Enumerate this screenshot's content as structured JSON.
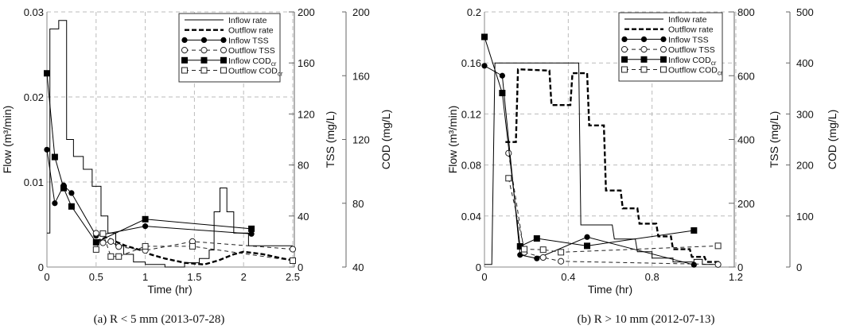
{
  "chart_data": [
    {
      "type": "line",
      "caption": "(a)  R < 5 mm  (2013-07-28)",
      "xlabel": "Time (hr)",
      "ylabel": "Flow (m³/min)",
      "y2label": "TSS (mg/L)",
      "y3label": "COD (mg/L)",
      "xlim": [
        0,
        2.5
      ],
      "xticks": [
        "0",
        "0.5",
        "1",
        "1.5",
        "2",
        "2.5"
      ],
      "ylim": [
        0,
        0.03
      ],
      "yticks": [
        "0",
        "0.01",
        "0.02",
        "0.03"
      ],
      "y2lim": [
        0,
        200
      ],
      "y2ticks": [
        "0",
        "40",
        "80",
        "120",
        "160",
        "200"
      ],
      "y3lim": [
        40,
        200
      ],
      "y3ticks": [
        "40",
        "80",
        "120",
        "160",
        "200"
      ],
      "legend_position": "top-right",
      "series": [
        {
          "name": "Inflow rate",
          "axis": "flow",
          "style": "solid-step",
          "x": [
            0,
            0.03,
            0.03,
            0.12,
            0.12,
            0.2,
            0.2,
            0.27,
            0.27,
            0.37,
            0.37,
            0.46,
            0.46,
            0.55,
            0.55,
            0.62,
            0.62,
            0.7,
            0.7,
            0.78,
            0.78,
            0.88,
            0.88,
            1.0,
            1.0,
            1.2,
            1.2,
            1.4,
            1.4,
            1.55,
            1.55,
            1.65,
            1.65,
            1.7,
            1.7,
            1.76,
            1.76,
            1.83,
            1.83,
            1.9,
            1.9,
            2.05,
            2.05,
            2.5
          ],
          "y": [
            0.004,
            0.004,
            0.028,
            0.028,
            0.029,
            0.029,
            0.015,
            0.015,
            0.013,
            0.013,
            0.0115,
            0.0115,
            0.0095,
            0.0095,
            0.006,
            0.006,
            0.004,
            0.004,
            0.0025,
            0.0025,
            0.0015,
            0.0015,
            0.0006,
            0.0006,
            0.0003,
            0.0003,
            0.0,
            0.0,
            0.0005,
            0.0005,
            0.001,
            0.001,
            0.002,
            0.002,
            0.0065,
            0.0065,
            0.0093,
            0.0093,
            0.0065,
            0.0065,
            0.004,
            0.004,
            0.0025,
            0.0025
          ]
        },
        {
          "name": "Outflow rate",
          "axis": "flow",
          "style": "thick-dash",
          "x": [
            0.5,
            0.6,
            0.7,
            0.8,
            0.95,
            1.05,
            1.2,
            1.4,
            1.6,
            1.75,
            1.9,
            2.0,
            2.2,
            2.4,
            2.5
          ],
          "y": [
            0.003,
            0.0035,
            0.003,
            0.0025,
            0.002,
            0.0015,
            0.001,
            0.0005,
            0.0003,
            0.0008,
            0.0015,
            0.0018,
            0.0015,
            0.001,
            0.0008
          ]
        },
        {
          "name": "Inflow TSS",
          "axis": "tss",
          "style": "filled-circle",
          "x": [
            0,
            0.08,
            0.17,
            0.25,
            0.5,
            1.0,
            2.08
          ],
          "y": [
            92,
            50,
            64,
            58,
            24.5,
            32,
            26
          ]
        },
        {
          "name": "Outflow TSS",
          "axis": "tss",
          "style": "open-circle",
          "x": [
            0.5,
            0.57,
            0.65,
            0.73,
            1.0,
            1.48,
            2.5
          ],
          "y": [
            26.5,
            19,
            20,
            16,
            13,
            20,
            14
          ]
        },
        {
          "name": "Inflow CODcr",
          "axis": "cod",
          "style": "filled-square",
          "x": [
            0,
            0.08,
            0.17,
            0.25,
            0.5,
            1.0,
            2.08
          ],
          "y": [
            161.5,
            109,
            89.5,
            78,
            55.5,
            70,
            64
          ]
        },
        {
          "name": "Outflow CODcr",
          "axis": "cod",
          "style": "open-square",
          "x": [
            0.5,
            0.57,
            0.65,
            0.73,
            1.0,
            1.48,
            2.5
          ],
          "y": [
            51,
            61,
            46.6,
            46.6,
            53,
            53,
            44
          ]
        }
      ]
    },
    {
      "type": "line",
      "caption": "(b)  R > 10 mm  (2012-07-13)",
      "xlabel": "Time (hr)",
      "ylabel": "Flow (m³/min)",
      "y2label": "TSS (mg/L)",
      "y3label": "COD (mg/L)",
      "xlim": [
        0,
        1.2
      ],
      "xticks": [
        "0",
        "0.4",
        "0.8",
        "1.2"
      ],
      "ylim": [
        0,
        0.2
      ],
      "yticks": [
        "0",
        "0.04",
        "0.08",
        "0.12",
        "0.16",
        "0.2"
      ],
      "y2lim": [
        0,
        800
      ],
      "y2ticks": [
        "0",
        "200",
        "400",
        "600",
        "800"
      ],
      "y3lim": [
        0,
        500
      ],
      "y3ticks": [
        "0",
        "100",
        "200",
        "300",
        "400",
        "500"
      ],
      "legend_position": "top-right",
      "series": [
        {
          "name": "Inflow rate",
          "axis": "flow",
          "style": "solid-step",
          "x": [
            0,
            0.035,
            0.05,
            0.45,
            0.46,
            0.61,
            0.62,
            0.72,
            0.73,
            0.8,
            0.8,
            0.9,
            0.9,
            1.0,
            1.0,
            1.04,
            1.04,
            1.12
          ],
          "y": [
            0.002,
            0.002,
            0.16,
            0.16,
            0.033,
            0.033,
            0.022,
            0.022,
            0.012,
            0.012,
            0.007,
            0.007,
            0.004,
            0.004,
            0.006,
            0.006,
            0.002,
            0.002
          ]
        },
        {
          "name": "Outflow rate",
          "axis": "flow",
          "style": "thick-dash",
          "x": [
            0.1,
            0.15,
            0.16,
            0.31,
            0.32,
            0.41,
            0.42,
            0.49,
            0.5,
            0.57,
            0.58,
            0.65,
            0.66,
            0.73,
            0.74,
            0.82,
            0.83,
            0.89,
            0.9,
            0.98,
            0.99,
            1.05,
            1.06,
            1.12
          ],
          "y": [
            0.098,
            0.098,
            0.155,
            0.154,
            0.127,
            0.127,
            0.152,
            0.152,
            0.111,
            0.111,
            0.06,
            0.06,
            0.046,
            0.046,
            0.034,
            0.034,
            0.024,
            0.024,
            0.014,
            0.014,
            0.008,
            0.008,
            0.004,
            0.004
          ]
        },
        {
          "name": "Inflow TSS",
          "axis": "tss",
          "style": "filled-circle",
          "x": [
            0,
            0.085,
            0.17,
            0.25,
            0.49,
            1.0
          ],
          "y": [
            631,
            600,
            38,
            27,
            94,
            7
          ]
        },
        {
          "name": "Outflow TSS",
          "axis": "tss",
          "style": "open-circle",
          "x": [
            0.115,
            0.19,
            0.28,
            0.365,
            1.115
          ],
          "y": [
            357,
            46,
            30,
            18,
            8
          ]
        },
        {
          "name": "Inflow CODcr",
          "axis": "cod",
          "style": "filled-square",
          "x": [
            0,
            0.085,
            0.17,
            0.25,
            0.49,
            1.0
          ],
          "y": [
            451,
            341,
            40.5,
            56,
            41.5,
            71.7
          ]
        },
        {
          "name": "Outflow CODcr",
          "axis": "cod",
          "style": "open-square",
          "x": [
            0.115,
            0.19,
            0.28,
            0.365,
            1.115
          ],
          "y": [
            174,
            35,
            34,
            29,
            41.5
          ]
        }
      ]
    }
  ]
}
